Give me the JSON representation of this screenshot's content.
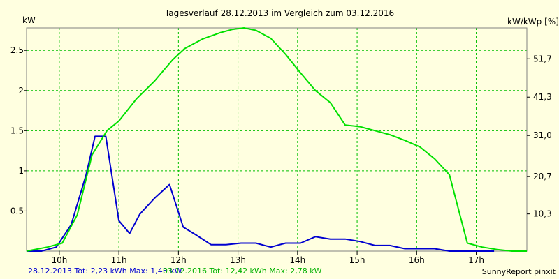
{
  "chart_data": {
    "type": "line",
    "title": "Tagesverlauf 28.12.2013 im Vergleich zum 03.12.2016",
    "ylabel_left": "kW",
    "ylabel_right": "kW/kWp [%]",
    "ylim": [
      0,
      2.78
    ],
    "xlim": [
      9.45,
      17.85
    ],
    "y_ticks": [
      0.5,
      1,
      1.5,
      2,
      2.5
    ],
    "y_tick_labels": [
      "0.5",
      "1",
      "1.5",
      "2",
      "2.5"
    ],
    "y2_ticks": [
      0.4635,
      0.9281,
      1.4404,
      1.9179,
      2.3955
    ],
    "y2_tick_labels": [
      "10,3",
      "20,7",
      "31,0",
      "41,3",
      "51,7"
    ],
    "x_ticks": [
      10,
      11,
      12,
      13,
      14,
      15,
      16,
      17
    ],
    "x_tick_labels": [
      "10h",
      "11h",
      "12h",
      "13h",
      "14h",
      "15h",
      "16h",
      "17h"
    ],
    "grid": true,
    "series": [
      {
        "name": "28.12.2013",
        "color": "#0000d0",
        "x": [
          9.45,
          9.7,
          9.95,
          10.2,
          10.45,
          10.6,
          10.78,
          11.0,
          11.18,
          11.35,
          11.6,
          11.85,
          12.08,
          12.3,
          12.55,
          12.8,
          13.05,
          13.3,
          13.55,
          13.8,
          14.05,
          14.3,
          14.55,
          14.8,
          15.05,
          15.3,
          15.55,
          15.8,
          16.05,
          16.3,
          16.55,
          16.8,
          17.05,
          17.3
        ],
        "values": [
          0.0,
          0.0,
          0.05,
          0.33,
          0.95,
          1.43,
          1.43,
          0.38,
          0.22,
          0.46,
          0.66,
          0.83,
          0.3,
          0.2,
          0.08,
          0.08,
          0.1,
          0.1,
          0.05,
          0.1,
          0.1,
          0.18,
          0.15,
          0.15,
          0.12,
          0.07,
          0.07,
          0.03,
          0.03,
          0.03,
          0.0,
          0.0,
          0.0,
          0.0
        ]
      },
      {
        "name": "03.12.2016",
        "color": "#00e000",
        "x": [
          9.45,
          9.8,
          10.05,
          10.3,
          10.55,
          10.8,
          11.0,
          11.3,
          11.6,
          11.9,
          12.1,
          12.4,
          12.7,
          12.9,
          13.1,
          13.3,
          13.55,
          13.8,
          14.05,
          14.3,
          14.55,
          14.8,
          15.05,
          15.3,
          15.55,
          15.8,
          16.05,
          16.3,
          16.55,
          16.85,
          17.1,
          17.35,
          17.6,
          17.85
        ],
        "values": [
          0.0,
          0.05,
          0.1,
          0.45,
          1.2,
          1.5,
          1.62,
          1.9,
          2.12,
          2.38,
          2.52,
          2.64,
          2.72,
          2.76,
          2.78,
          2.75,
          2.65,
          2.45,
          2.22,
          2.0,
          1.85,
          1.57,
          1.55,
          1.5,
          1.45,
          1.38,
          1.3,
          1.15,
          0.95,
          0.1,
          0.05,
          0.02,
          0.0,
          0.0
        ]
      }
    ]
  },
  "footer": {
    "legend_blue": "28.12.2013 Tot: 2,23 kWh Max: 1,43 kW",
    "legend_green": "03.12.2016 Tot: 12,42 kWh Max: 2,78 kW",
    "credit": "SunnyReport pinxit"
  },
  "colors": {
    "background": "#ffffe0",
    "grid": "#00c000",
    "blue": "#0000d0",
    "green": "#00e000"
  }
}
